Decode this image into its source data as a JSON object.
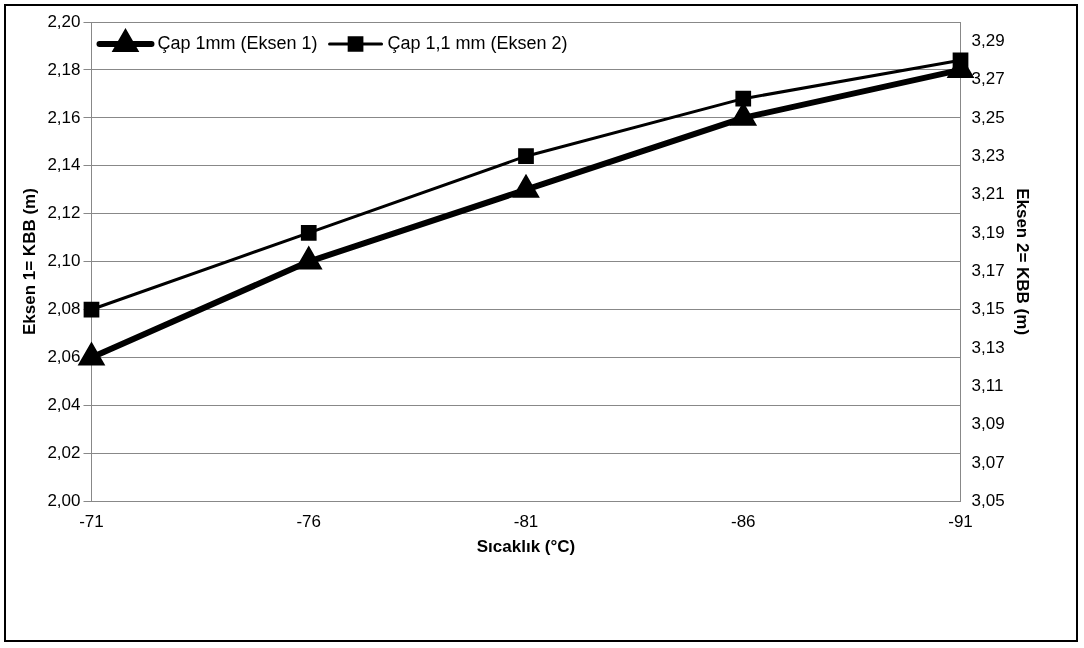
{
  "chart_data": {
    "type": "line",
    "xlabel": "Sıcaklık (°C)",
    "ylabel": "Eksen 1= KBB (m)",
    "y2label": "Eksen 2= KBB (m)",
    "categories": [
      "-71",
      "-76",
      "-81",
      "-86",
      "-91"
    ],
    "series": [
      {
        "name": "Çap 1mm (Eksen 1)",
        "color": "#000000",
        "marker": "triangle",
        "values": [
          2.06,
          2.1,
          2.13,
          2.16,
          2.18
        ]
      },
      {
        "name": "Çap 1,1 mm (Eksen 2)",
        "color": "#000000",
        "marker": "square",
        "axis": "y2",
        "values": [
          3.15,
          3.19,
          3.23,
          3.26,
          3.28
        ]
      }
    ],
    "ylim": [
      2.0,
      2.2
    ],
    "yticks": [
      {
        "value": 2.0,
        "label": "2,00"
      },
      {
        "value": 2.02,
        "label": "2,02"
      },
      {
        "value": 2.04,
        "label": "2,04"
      },
      {
        "value": 2.06,
        "label": "2,06"
      },
      {
        "value": 2.08,
        "label": "2,08"
      },
      {
        "value": 2.1,
        "label": "2,10"
      },
      {
        "value": 2.12,
        "label": "2,12"
      },
      {
        "value": 2.14,
        "label": "2,14"
      },
      {
        "value": 2.16,
        "label": "2,16"
      },
      {
        "value": 2.18,
        "label": "2,18"
      },
      {
        "value": 2.2,
        "label": "2,20"
      }
    ],
    "y2lim": [
      3.05,
      3.3
    ],
    "y2ticks": [
      {
        "value": 3.05,
        "label": "3,05"
      },
      {
        "value": 3.07,
        "label": "3,07"
      },
      {
        "value": 3.09,
        "label": "3,09"
      },
      {
        "value": 3.11,
        "label": "3,11"
      },
      {
        "value": 3.13,
        "label": "3,13"
      },
      {
        "value": 3.15,
        "label": "3,15"
      },
      {
        "value": 3.17,
        "label": "3,17"
      },
      {
        "value": 3.19,
        "label": "3,19"
      },
      {
        "value": 3.21,
        "label": "3,21"
      },
      {
        "value": 3.23,
        "label": "3,23"
      },
      {
        "value": 3.25,
        "label": "3,25"
      },
      {
        "value": 3.27,
        "label": "3,27"
      },
      {
        "value": 3.29,
        "label": "3,29"
      }
    ],
    "grid": "y",
    "legend": "top left",
    "line_style": "solid"
  }
}
